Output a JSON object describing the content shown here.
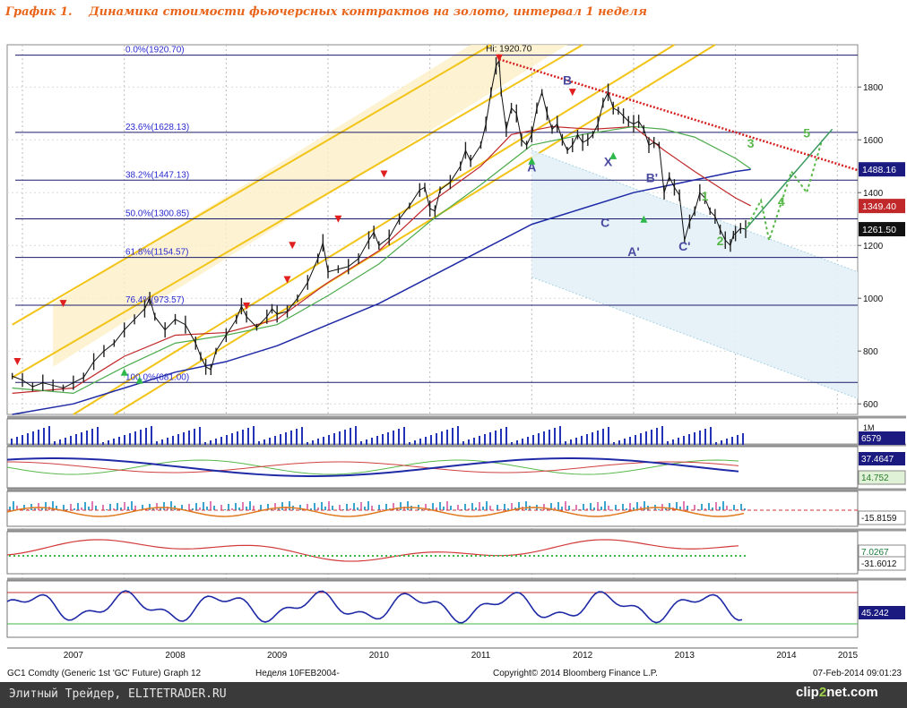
{
  "title": {
    "number": "График 1.",
    "text": "Динамика стоимости фьючерсных контрактов на золото, интервал 1 неделя"
  },
  "chart_data": {
    "type": "line",
    "ylim": [
      560,
      1960
    ],
    "xlim": [
      2006.85,
      2015.2
    ],
    "y_ticks": [
      600,
      800,
      1000,
      1200,
      1400,
      1600,
      1800
    ],
    "x_ticks": [
      "2007",
      "2008",
      "2009",
      "2010",
      "2011",
      "2012",
      "2013",
      "2014",
      "2015"
    ],
    "x_tick_pos": [
      2007.0,
      2008.0,
      2009.0,
      2010.0,
      2011.0,
      2012.0,
      2013.0,
      2014.0,
      2015.0
    ],
    "price": [
      [
        2006.9,
        705
      ],
      [
        2007.0,
        690
      ],
      [
        2007.1,
        665
      ],
      [
        2007.2,
        680
      ],
      [
        2007.3,
        670
      ],
      [
        2007.4,
        660
      ],
      [
        2007.5,
        680
      ],
      [
        2007.6,
        700
      ],
      [
        2007.7,
        760
      ],
      [
        2007.8,
        800
      ],
      [
        2007.9,
        830
      ],
      [
        2008.0,
        880
      ],
      [
        2008.1,
        920
      ],
      [
        2008.2,
        960
      ],
      [
        2008.25,
        1000
      ],
      [
        2008.3,
        930
      ],
      [
        2008.4,
        880
      ],
      [
        2008.5,
        920
      ],
      [
        2008.6,
        900
      ],
      [
        2008.7,
        830
      ],
      [
        2008.75,
        780
      ],
      [
        2008.8,
        740
      ],
      [
        2008.85,
        730
      ],
      [
        2008.9,
        800
      ],
      [
        2009.0,
        860
      ],
      [
        2009.1,
        920
      ],
      [
        2009.15,
        970
      ],
      [
        2009.2,
        930
      ],
      [
        2009.3,
        890
      ],
      [
        2009.4,
        930
      ],
      [
        2009.45,
        960
      ],
      [
        2009.5,
        940
      ],
      [
        2009.6,
        950
      ],
      [
        2009.7,
        1000
      ],
      [
        2009.8,
        1060
      ],
      [
        2009.9,
        1150
      ],
      [
        2009.95,
        1210
      ],
      [
        2010.0,
        1100
      ],
      [
        2010.1,
        1110
      ],
      [
        2010.2,
        1120
      ],
      [
        2010.3,
        1150
      ],
      [
        2010.4,
        1220
      ],
      [
        2010.45,
        1250
      ],
      [
        2010.5,
        1200
      ],
      [
        2010.6,
        1230
      ],
      [
        2010.7,
        1300
      ],
      [
        2010.8,
        1350
      ],
      [
        2010.9,
        1410
      ],
      [
        2010.95,
        1420
      ],
      [
        2011.0,
        1340
      ],
      [
        2011.05,
        1330
      ],
      [
        2011.1,
        1410
      ],
      [
        2011.2,
        1440
      ],
      [
        2011.3,
        1500
      ],
      [
        2011.35,
        1560
      ],
      [
        2011.4,
        1520
      ],
      [
        2011.5,
        1580
      ],
      [
        2011.55,
        1660
      ],
      [
        2011.6,
        1780
      ],
      [
        2011.65,
        1880
      ],
      [
        2011.68,
        1900
      ],
      [
        2011.7,
        1780
      ],
      [
        2011.75,
        1640
      ],
      [
        2011.8,
        1720
      ],
      [
        2011.85,
        1700
      ],
      [
        2011.9,
        1600
      ],
      [
        2011.95,
        1580
      ],
      [
        2012.0,
        1620
      ],
      [
        2012.05,
        1720
      ],
      [
        2012.1,
        1780
      ],
      [
        2012.15,
        1700
      ],
      [
        2012.2,
        1640
      ],
      [
        2012.25,
        1660
      ],
      [
        2012.3,
        1600
      ],
      [
        2012.35,
        1560
      ],
      [
        2012.4,
        1580
      ],
      [
        2012.45,
        1620
      ],
      [
        2012.5,
        1590
      ],
      [
        2012.55,
        1600
      ],
      [
        2012.6,
        1620
      ],
      [
        2012.65,
        1660
      ],
      [
        2012.7,
        1740
      ],
      [
        2012.75,
        1780
      ],
      [
        2012.8,
        1720
      ],
      [
        2012.85,
        1710
      ],
      [
        2012.9,
        1690
      ],
      [
        2012.95,
        1670
      ],
      [
        2013.0,
        1660
      ],
      [
        2013.05,
        1670
      ],
      [
        2013.1,
        1640
      ],
      [
        2013.15,
        1580
      ],
      [
        2013.2,
        1590
      ],
      [
        2013.25,
        1580
      ],
      [
        2013.3,
        1400
      ],
      [
        2013.35,
        1460
      ],
      [
        2013.4,
        1420
      ],
      [
        2013.45,
        1390
      ],
      [
        2013.5,
        1220
      ],
      [
        2013.55,
        1290
      ],
      [
        2013.6,
        1330
      ],
      [
        2013.65,
        1400
      ],
      [
        2013.7,
        1380
      ],
      [
        2013.75,
        1330
      ],
      [
        2013.8,
        1310
      ],
      [
        2013.85,
        1260
      ],
      [
        2013.9,
        1220
      ],
      [
        2013.95,
        1200
      ],
      [
        2013.98,
        1240
      ],
      [
        2014.0,
        1245
      ],
      [
        2014.05,
        1265
      ],
      [
        2014.1,
        1262
      ]
    ],
    "ma_green": [
      [
        2006.9,
        660
      ],
      [
        2007.5,
        640
      ],
      [
        2008.0,
        740
      ],
      [
        2008.5,
        830
      ],
      [
        2009.0,
        860
      ],
      [
        2009.5,
        900
      ],
      [
        2010.0,
        1010
      ],
      [
        2010.5,
        1130
      ],
      [
        2011.0,
        1290
      ],
      [
        2011.5,
        1430
      ],
      [
        2012.0,
        1580
      ],
      [
        2012.5,
        1620
      ],
      [
        2013.0,
        1650
      ],
      [
        2013.3,
        1640
      ],
      [
        2013.6,
        1610
      ],
      [
        2014.0,
        1530
      ],
      [
        2014.15,
        1490
      ]
    ],
    "ma_red": [
      [
        2006.9,
        640
      ],
      [
        2007.5,
        660
      ],
      [
        2008.0,
        780
      ],
      [
        2008.5,
        860
      ],
      [
        2009.0,
        870
      ],
      [
        2009.5,
        920
      ],
      [
        2010.0,
        1060
      ],
      [
        2010.5,
        1180
      ],
      [
        2011.0,
        1360
      ],
      [
        2011.5,
        1500
      ],
      [
        2011.8,
        1620
      ],
      [
        2012.2,
        1650
      ],
      [
        2012.6,
        1640
      ],
      [
        2013.0,
        1650
      ],
      [
        2013.3,
        1560
      ],
      [
        2013.6,
        1480
      ],
      [
        2014.0,
        1380
      ],
      [
        2014.15,
        1350
      ]
    ],
    "ma_blue": [
      [
        2006.9,
        560
      ],
      [
        2007.5,
        600
      ],
      [
        2008.0,
        660
      ],
      [
        2008.5,
        720
      ],
      [
        2009.0,
        760
      ],
      [
        2009.5,
        820
      ],
      [
        2010.0,
        900
      ],
      [
        2010.5,
        980
      ],
      [
        2011.0,
        1080
      ],
      [
        2011.5,
        1180
      ],
      [
        2012.0,
        1280
      ],
      [
        2012.5,
        1340
      ],
      [
        2013.0,
        1400
      ],
      [
        2013.5,
        1440
      ],
      [
        2014.0,
        1480
      ],
      [
        2014.15,
        1488
      ]
    ],
    "fib_levels": [
      {
        "label": "0.0%(1920.70)",
        "value": 1920.7
      },
      {
        "label": "23.6%(1628.13)",
        "value": 1628.13
      },
      {
        "label": "38.2%(1447.13)",
        "value": 1447.13
      },
      {
        "label": "50.0%(1300.85)",
        "value": 1300.85
      },
      {
        "label": "61.8%(1154.57)",
        "value": 1154.57
      },
      {
        "label": "76.4%(973.57)",
        "value": 973.57
      },
      {
        "label": "100.0%(681.00)",
        "value": 681.0
      }
    ],
    "hi_label": "Hi: 1920.70",
    "price_tags": [
      {
        "text": "1488.16",
        "value": 1488.16,
        "color": "#1a1a80"
      },
      {
        "text": "1349.40",
        "value": 1349.4,
        "color": "#c0282a"
      },
      {
        "text": "1261.50",
        "value": 1261.5,
        "color": "#111111"
      }
    ],
    "wave_labels": [
      {
        "text": "A",
        "x": 2012.0,
        "y": 1480,
        "color": "#4a4aa0"
      },
      {
        "text": "B",
        "x": 2012.35,
        "y": 1810,
        "color": "#4a4aa0"
      },
      {
        "text": "X",
        "x": 2012.75,
        "y": 1500,
        "color": "#4a4aa0"
      },
      {
        "text": "C",
        "x": 2012.72,
        "y": 1270,
        "color": "#4a4aa0"
      },
      {
        "text": "B'",
        "x": 2013.18,
        "y": 1440,
        "color": "#4a4aa0"
      },
      {
        "text": "A'",
        "x": 2013.0,
        "y": 1160,
        "color": "#4a4aa0"
      },
      {
        "text": "C'",
        "x": 2013.5,
        "y": 1180,
        "color": "#4a4aa0"
      },
      {
        "text": "1",
        "x": 2013.7,
        "y": 1370,
        "color": "#59b84a"
      },
      {
        "text": "2",
        "x": 2013.85,
        "y": 1200,
        "color": "#59b84a"
      },
      {
        "text": "3",
        "x": 2014.15,
        "y": 1570,
        "color": "#59b84a"
      },
      {
        "text": "4",
        "x": 2014.45,
        "y": 1350,
        "color": "#59b84a"
      },
      {
        "text": "5",
        "x": 2014.7,
        "y": 1610,
        "color": "#59b84a"
      }
    ],
    "forecast": [
      [
        2014.1,
        1262
      ],
      [
        2014.25,
        1370
      ],
      [
        2014.33,
        1220
      ],
      [
        2014.55,
        1480
      ],
      [
        2014.7,
        1400
      ],
      [
        2014.85,
        1600
      ]
    ],
    "indicator_values": [
      "6579",
      "37.4647",
      "14.752",
      "-15.8159",
      "7.0267",
      "-31.6012",
      "45.242"
    ],
    "panel_top_label": "1M"
  },
  "footer": {
    "left": "GC1 Comdty (Generic 1st 'GC' Future) Graph 12",
    "mid": "Неделя 10FEB2004-",
    "copyright": "Copyright© 2014 Bloomberg Finance L.P.",
    "date": "07-Feb-2014 09:01:23"
  },
  "bar": {
    "left": "Элитный Трейдер, ELITETRADER.RU",
    "logo_pre": "clip",
    "logo_num": "2",
    "logo_post": "net.com"
  }
}
